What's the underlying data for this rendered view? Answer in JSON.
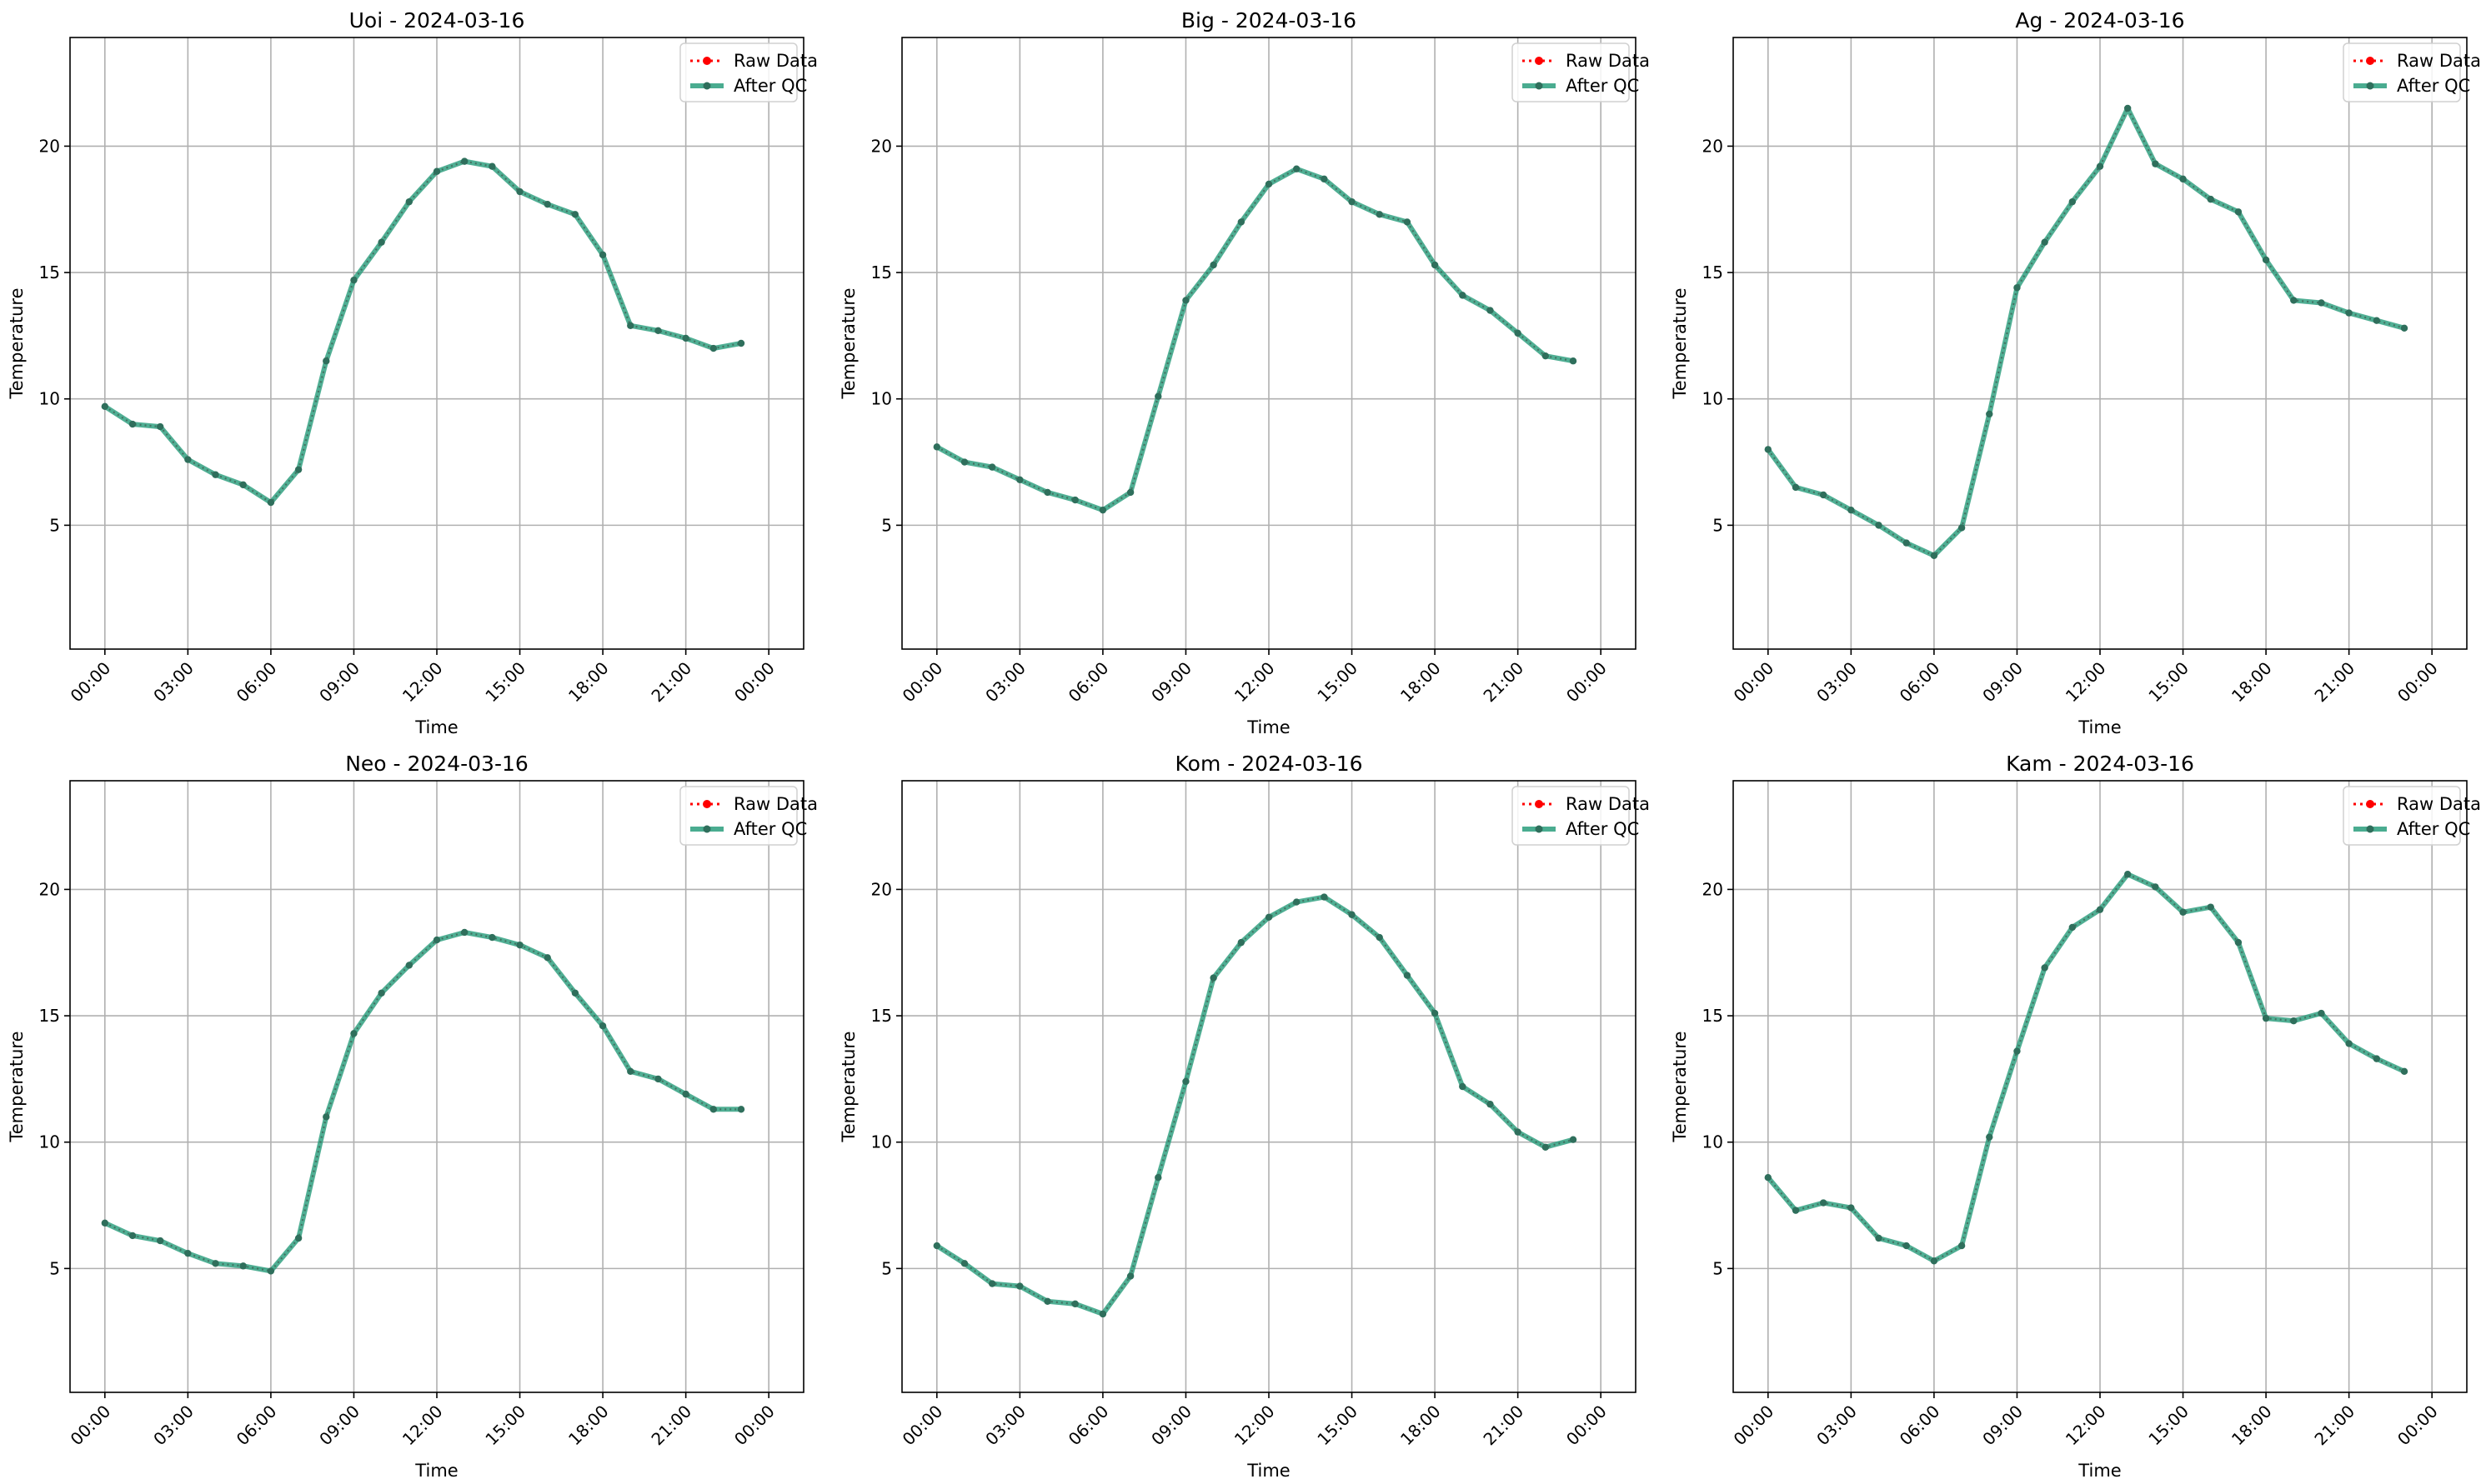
{
  "figure": {
    "legend_raw": "Raw Data",
    "legend_qc": "After QC",
    "x_label": "Time",
    "y_label": "Temperature",
    "colors": {
      "raw": "#ff0000",
      "qc_line": "#2a9d7c",
      "marker": "#2f6f5c",
      "grid": "#b0b0b0"
    }
  },
  "chart_data": [
    {
      "type": "line",
      "title": "Uoi - 2024-03-16",
      "xlabel": "Time",
      "ylabel": "Temperature",
      "x_ticks": [
        "00:00",
        "03:00",
        "06:00",
        "09:00",
        "12:00",
        "15:00",
        "18:00",
        "21:00",
        "00:00"
      ],
      "y_ticks": [
        5,
        10,
        15,
        20
      ],
      "ylim": [
        0.1,
        24.3
      ],
      "grid": true,
      "legend": "top-right",
      "hours": [
        0,
        1,
        2,
        3,
        4,
        5,
        6,
        7,
        8,
        9,
        10,
        11,
        12,
        13,
        14,
        15,
        16,
        17,
        18,
        19,
        20,
        21,
        22,
        23
      ],
      "series": [
        {
          "name": "Raw Data",
          "style": "dotted",
          "values": [
            9.7,
            9.0,
            8.9,
            7.6,
            7.0,
            6.6,
            5.9,
            7.2,
            11.5,
            14.7,
            16.2,
            17.8,
            19.0,
            19.4,
            19.2,
            18.2,
            17.7,
            17.3,
            15.7,
            12.9,
            12.7,
            12.4,
            12.0,
            12.2
          ]
        },
        {
          "name": "After QC",
          "style": "solid",
          "values": [
            9.7,
            9.0,
            8.9,
            7.6,
            7.0,
            6.6,
            5.9,
            7.2,
            11.5,
            14.7,
            16.2,
            17.8,
            19.0,
            19.4,
            19.2,
            18.2,
            17.7,
            17.3,
            15.7,
            12.9,
            12.7,
            12.4,
            12.0,
            12.2
          ]
        }
      ]
    },
    {
      "type": "line",
      "title": "Big - 2024-03-16",
      "xlabel": "Time",
      "ylabel": "Temperature",
      "x_ticks": [
        "00:00",
        "03:00",
        "06:00",
        "09:00",
        "12:00",
        "15:00",
        "18:00",
        "21:00",
        "00:00"
      ],
      "y_ticks": [
        5,
        10,
        15,
        20
      ],
      "ylim": [
        0.1,
        24.3
      ],
      "grid": true,
      "legend": "top-right",
      "hours": [
        0,
        1,
        2,
        3,
        4,
        5,
        6,
        7,
        8,
        9,
        10,
        11,
        12,
        13,
        14,
        15,
        16,
        17,
        18,
        19,
        20,
        21,
        22,
        23
      ],
      "series": [
        {
          "name": "Raw Data",
          "style": "dotted",
          "values": [
            8.1,
            7.5,
            7.3,
            6.8,
            6.3,
            6.0,
            5.6,
            6.3,
            10.1,
            13.9,
            15.3,
            17.0,
            18.5,
            19.1,
            18.7,
            17.8,
            17.3,
            17.0,
            15.3,
            14.1,
            13.5,
            12.6,
            11.7,
            11.5
          ]
        },
        {
          "name": "After QC",
          "style": "solid",
          "values": [
            8.1,
            7.5,
            7.3,
            6.8,
            6.3,
            6.0,
            5.6,
            6.3,
            10.1,
            13.9,
            15.3,
            17.0,
            18.5,
            19.1,
            18.7,
            17.8,
            17.3,
            17.0,
            15.3,
            14.1,
            13.5,
            12.6,
            11.7,
            11.5
          ]
        }
      ]
    },
    {
      "type": "line",
      "title": "Ag - 2024-03-16",
      "xlabel": "Time",
      "ylabel": "Temperature",
      "x_ticks": [
        "00:00",
        "03:00",
        "06:00",
        "09:00",
        "12:00",
        "15:00",
        "18:00",
        "21:00",
        "00:00"
      ],
      "y_ticks": [
        5,
        10,
        15,
        20
      ],
      "ylim": [
        0.1,
        24.3
      ],
      "grid": true,
      "legend": "top-right",
      "hours": [
        0,
        1,
        2,
        3,
        4,
        5,
        6,
        7,
        8,
        9,
        10,
        11,
        12,
        13,
        14,
        15,
        16,
        17,
        18,
        19,
        20,
        21,
        22,
        23
      ],
      "series": [
        {
          "name": "Raw Data",
          "style": "dotted",
          "values": [
            8.0,
            6.5,
            6.2,
            5.6,
            5.0,
            4.3,
            3.8,
            4.9,
            9.4,
            14.4,
            16.2,
            17.8,
            19.2,
            21.5,
            19.3,
            18.7,
            17.9,
            17.4,
            15.5,
            13.9,
            13.8,
            13.4,
            13.1,
            12.8
          ]
        },
        {
          "name": "After QC",
          "style": "solid",
          "values": [
            8.0,
            6.5,
            6.2,
            5.6,
            5.0,
            4.3,
            3.8,
            4.9,
            9.4,
            14.4,
            16.2,
            17.8,
            19.2,
            21.5,
            19.3,
            18.7,
            17.9,
            17.4,
            15.5,
            13.9,
            13.8,
            13.4,
            13.1,
            12.8
          ]
        }
      ]
    },
    {
      "type": "line",
      "title": "Neo - 2024-03-16",
      "xlabel": "Time",
      "ylabel": "Temperature",
      "x_ticks": [
        "00:00",
        "03:00",
        "06:00",
        "09:00",
        "12:00",
        "15:00",
        "18:00",
        "21:00",
        "00:00"
      ],
      "y_ticks": [
        5,
        10,
        15,
        20
      ],
      "ylim": [
        0.1,
        24.3
      ],
      "grid": true,
      "legend": "top-right",
      "hours": [
        0,
        1,
        2,
        3,
        4,
        5,
        6,
        7,
        8,
        9,
        10,
        11,
        12,
        13,
        14,
        15,
        16,
        17,
        18,
        19,
        20,
        21,
        22,
        23
      ],
      "series": [
        {
          "name": "Raw Data",
          "style": "dotted",
          "values": [
            6.8,
            6.3,
            6.1,
            5.6,
            5.2,
            5.1,
            4.9,
            6.2,
            11.0,
            14.3,
            15.9,
            17.0,
            18.0,
            18.3,
            18.1,
            17.8,
            17.3,
            15.9,
            14.6,
            12.8,
            12.5,
            11.9,
            11.3,
            11.3
          ]
        },
        {
          "name": "After QC",
          "style": "solid",
          "values": [
            6.8,
            6.3,
            6.1,
            5.6,
            5.2,
            5.1,
            4.9,
            6.2,
            11.0,
            14.3,
            15.9,
            17.0,
            18.0,
            18.3,
            18.1,
            17.8,
            17.3,
            15.9,
            14.6,
            12.8,
            12.5,
            11.9,
            11.3,
            11.3
          ]
        }
      ]
    },
    {
      "type": "line",
      "title": "Kom - 2024-03-16",
      "xlabel": "Time",
      "ylabel": "Temperature",
      "x_ticks": [
        "00:00",
        "03:00",
        "06:00",
        "09:00",
        "12:00",
        "15:00",
        "18:00",
        "21:00",
        "00:00"
      ],
      "y_ticks": [
        5,
        10,
        15,
        20
      ],
      "ylim": [
        0.1,
        24.3
      ],
      "grid": true,
      "legend": "top-right",
      "hours": [
        0,
        1,
        2,
        3,
        4,
        5,
        6,
        7,
        8,
        9,
        10,
        11,
        12,
        13,
        14,
        15,
        16,
        17,
        18,
        19,
        20,
        21,
        22,
        23
      ],
      "series": [
        {
          "name": "Raw Data",
          "style": "dotted",
          "values": [
            5.9,
            5.2,
            4.4,
            4.3,
            3.7,
            3.6,
            3.2,
            4.7,
            8.6,
            12.4,
            16.5,
            17.9,
            18.9,
            19.5,
            19.7,
            19.0,
            18.1,
            16.6,
            15.1,
            12.2,
            11.5,
            10.4,
            9.8,
            10.1
          ]
        },
        {
          "name": "After QC",
          "style": "solid",
          "values": [
            5.9,
            5.2,
            4.4,
            4.3,
            3.7,
            3.6,
            3.2,
            4.7,
            8.6,
            12.4,
            16.5,
            17.9,
            18.9,
            19.5,
            19.7,
            19.0,
            18.1,
            16.6,
            15.1,
            12.2,
            11.5,
            10.4,
            9.8,
            10.1
          ]
        }
      ]
    },
    {
      "type": "line",
      "title": "Kam - 2024-03-16",
      "xlabel": "Time",
      "ylabel": "Temperature",
      "x_ticks": [
        "00:00",
        "03:00",
        "06:00",
        "09:00",
        "12:00",
        "15:00",
        "18:00",
        "21:00",
        "00:00"
      ],
      "y_ticks": [
        5,
        10,
        15,
        20
      ],
      "ylim": [
        0.1,
        24.3
      ],
      "grid": true,
      "legend": "top-right",
      "hours": [
        0,
        1,
        2,
        3,
        4,
        5,
        6,
        7,
        8,
        9,
        10,
        11,
        12,
        13,
        14,
        15,
        16,
        17,
        18,
        19,
        20,
        21,
        22,
        23
      ],
      "series": [
        {
          "name": "Raw Data",
          "style": "dotted",
          "values": [
            8.6,
            7.3,
            7.6,
            7.4,
            6.2,
            5.9,
            5.3,
            5.9,
            10.2,
            13.6,
            16.9,
            18.5,
            19.2,
            20.6,
            20.1,
            19.1,
            19.3,
            17.9,
            14.9,
            14.8,
            15.1,
            13.9,
            13.3,
            12.8
          ]
        },
        {
          "name": "After QC",
          "style": "solid",
          "values": [
            8.6,
            7.3,
            7.6,
            7.4,
            6.2,
            5.9,
            5.3,
            5.9,
            10.2,
            13.6,
            16.9,
            18.5,
            19.2,
            20.6,
            20.1,
            19.1,
            19.3,
            17.9,
            14.9,
            14.8,
            15.1,
            13.9,
            13.3,
            12.8
          ]
        }
      ]
    }
  ]
}
